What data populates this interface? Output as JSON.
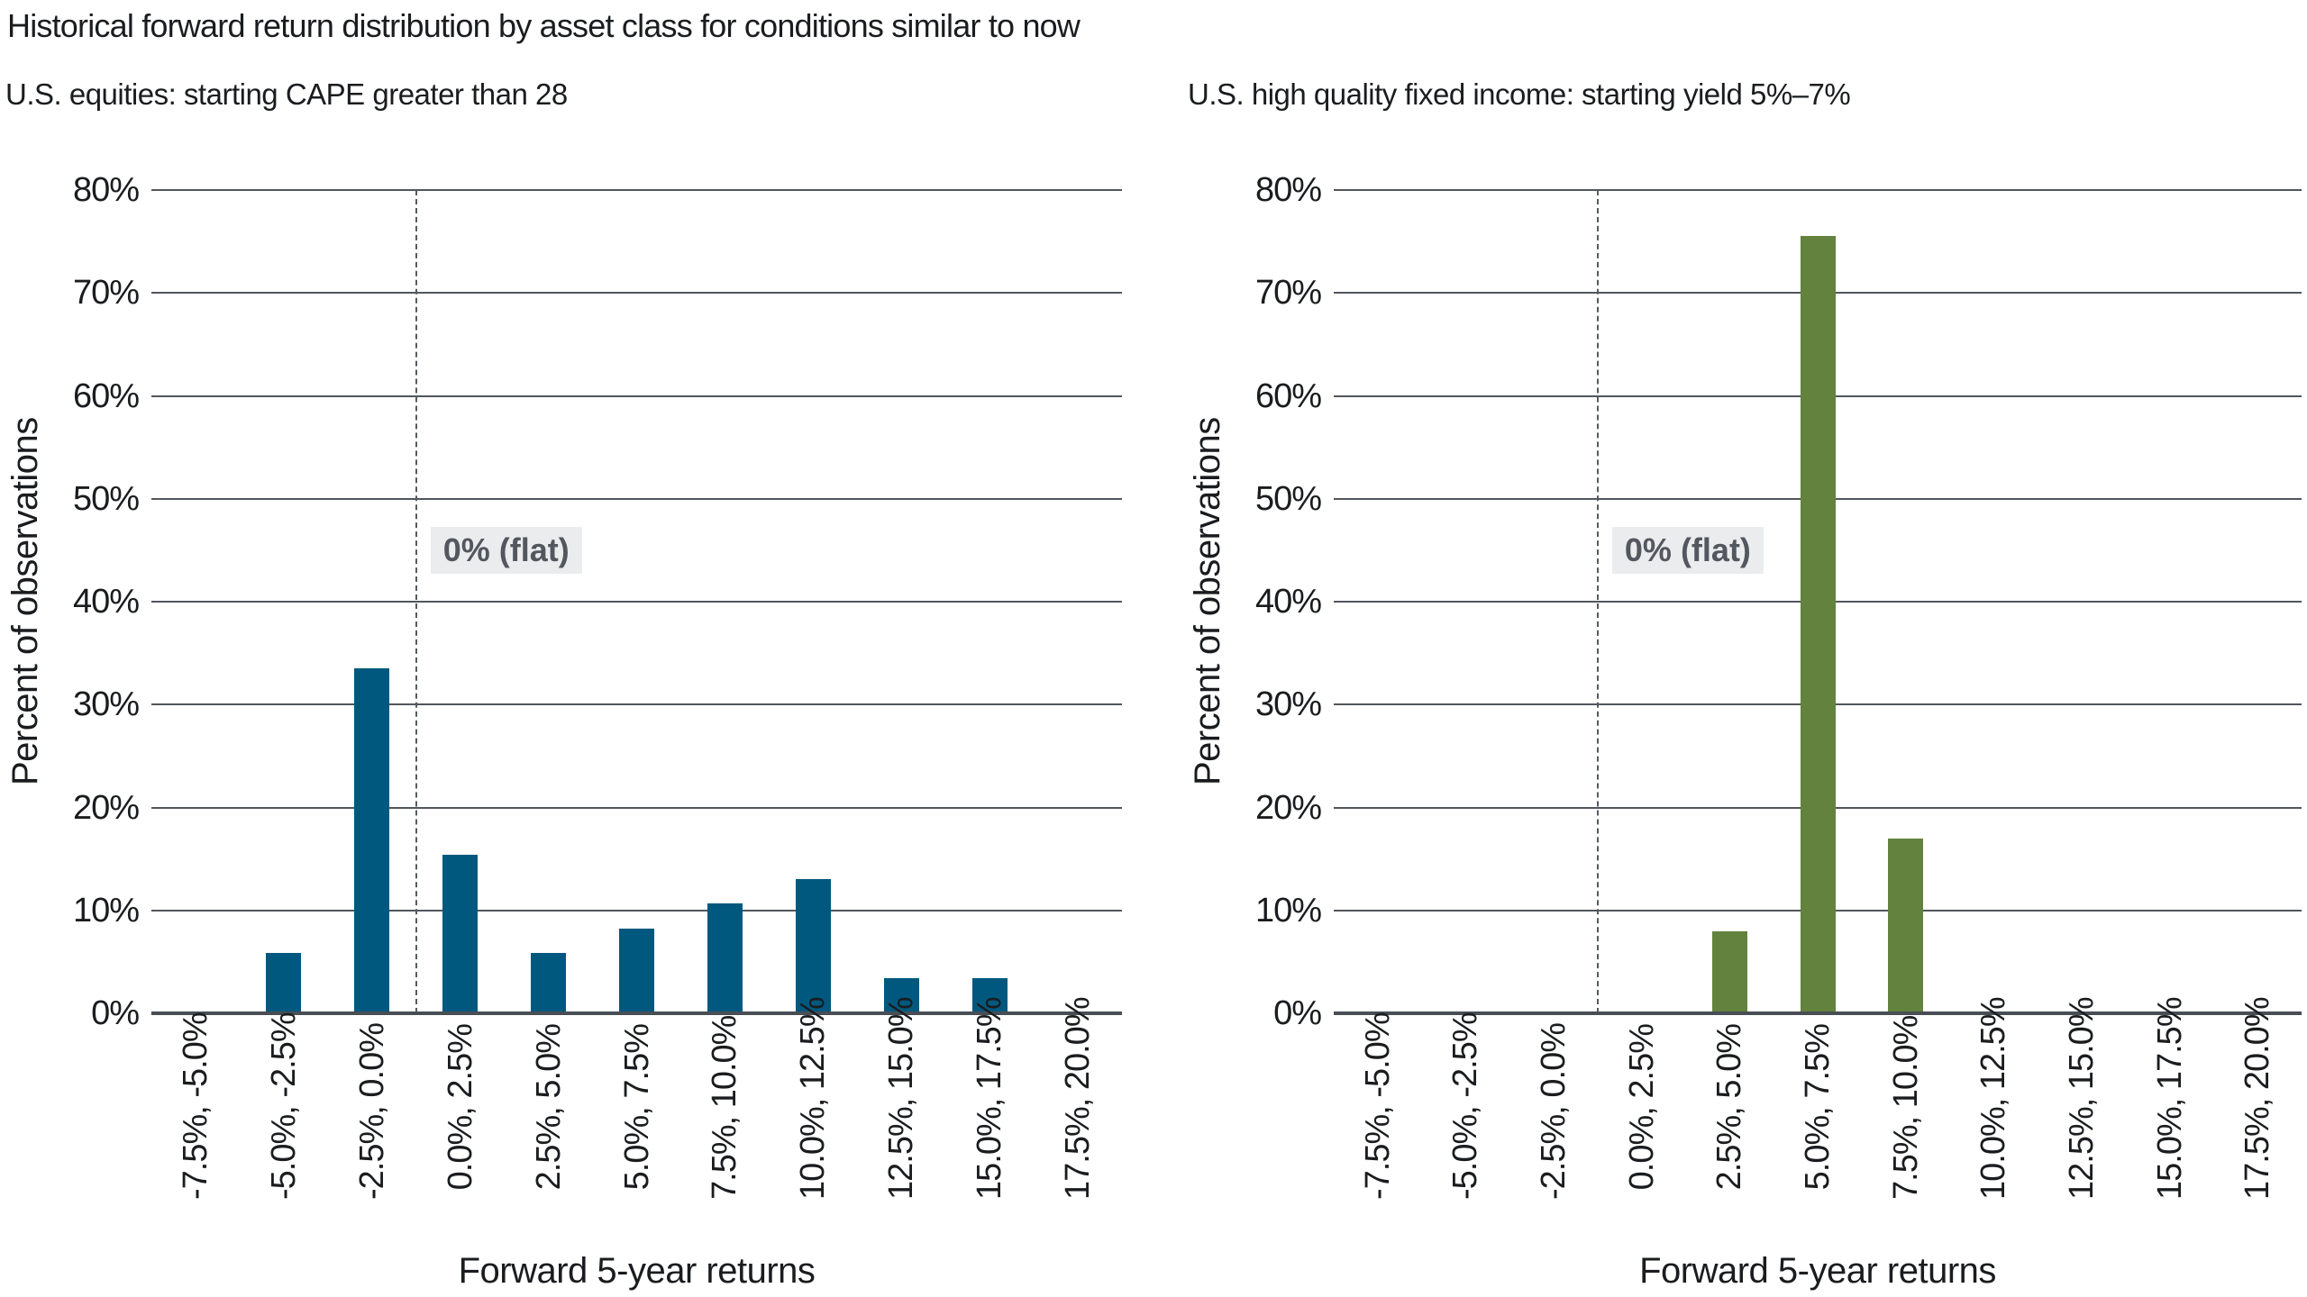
{
  "page": {
    "title": "Historical forward return distribution by asset class for conditions similar to now"
  },
  "style": {
    "background": "#FFFFFF",
    "text_color": "#1A1C1F",
    "gridline_color": "#51565D",
    "axis_line_color": "#494E55",
    "dashed_line_color": "#555A62",
    "annotation_text_color": "#53575F",
    "annotation_bg_color": "#EBECEE"
  },
  "chart_data": [
    {
      "type": "bar",
      "title": "U.S. equities: starting CAPE greater than 28",
      "xlabel": "Forward 5-year returns",
      "ylabel": "Percent of observations",
      "categories": [
        "-7.5%, -5.0%",
        "-5.0%, -2.5%",
        "-2.5%, 0.0%",
        "0.0%, 2.5%",
        "2.5%, 5.0%",
        "5.0%, 7.5%",
        "7.5%, 10.0%",
        "10.0%, 12.5%",
        "12.5%, 15.0%",
        "15.0%, 17.5%",
        "17.5%, 20.0%"
      ],
      "values": [
        0,
        5.9,
        33.5,
        15.4,
        5.9,
        8.2,
        10.7,
        13.0,
        3.4,
        3.4,
        0
      ],
      "bar_color": "#00587E",
      "ylim": [
        0,
        80
      ],
      "ytick_values": [
        0,
        10,
        20,
        30,
        40,
        50,
        60,
        70,
        80
      ],
      "ytick_labels": [
        "0%",
        "10%",
        "20%",
        "30%",
        "40%",
        "50%",
        "60%",
        "70%",
        "80%"
      ],
      "grid": true,
      "legend": "none",
      "annotation": {
        "label": "0% (flat)",
        "at_category_boundary": 3,
        "y_value": 45
      }
    },
    {
      "type": "bar",
      "title": "U.S. high quality fixed income: starting yield 5%–7%",
      "xlabel": "Forward 5-year returns",
      "ylabel": "Percent of observations",
      "categories": [
        "-7.5%, -5.0%",
        "-5.0%, -2.5%",
        "-2.5%, 0.0%",
        "0.0%, 2.5%",
        "2.5%, 5.0%",
        "5.0%, 7.5%",
        "7.5%, 10.0%",
        "10.0%, 12.5%",
        "12.5%, 15.0%",
        "15.0%, 17.5%",
        "17.5%, 20.0%"
      ],
      "values": [
        0,
        0,
        0,
        0,
        8.0,
        75.5,
        17.0,
        0,
        0,
        0,
        0
      ],
      "bar_color": "#63823E",
      "ylim": [
        0,
        80
      ],
      "ytick_values": [
        0,
        10,
        20,
        30,
        40,
        50,
        60,
        70,
        80
      ],
      "ytick_labels": [
        "0%",
        "10%",
        "20%",
        "30%",
        "40%",
        "50%",
        "60%",
        "70%",
        "80%"
      ],
      "grid": true,
      "legend": "none",
      "annotation": {
        "label": "0% (flat)",
        "at_category_boundary": 3,
        "y_value": 45
      }
    }
  ]
}
